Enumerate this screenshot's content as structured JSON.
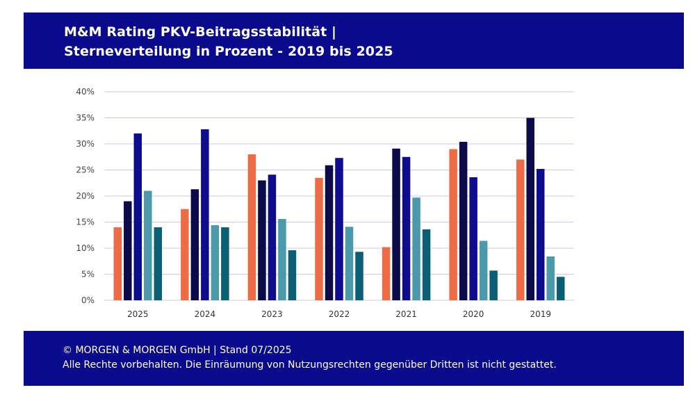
{
  "header": {
    "title_line1": "M&M Rating PKV-Beitragsstabilität |",
    "title_line2": "Sterneverteilung in Prozent - 2019 bis 2025"
  },
  "footer": {
    "line1": "© MORGEN & MORGEN GmbH | Stand 07/2025",
    "line2": "Alle Rechte vorbehalten. Die Einräumung von Nutzungsrechten gegenüber Dritten ist nicht gestattet."
  },
  "colors": {
    "header_bg": "#0a0a8c",
    "grid": "#c9c9ee",
    "series": [
      "#ee6c45",
      "#0b0b4a",
      "#0d0d8e",
      "#4b9aac",
      "#0a5f74"
    ]
  },
  "chart_data": {
    "type": "bar",
    "title": "",
    "xlabel": "",
    "ylabel": "",
    "ylim": [
      0,
      40
    ],
    "yticks": [
      "0%",
      "5%",
      "10%",
      "15%",
      "20%",
      "25%",
      "30%",
      "35%",
      "40%"
    ],
    "grid": true,
    "legend": "none",
    "categories": [
      "2025",
      "2024",
      "2023",
      "2022",
      "2021",
      "2020",
      "2019"
    ],
    "series": [
      {
        "values": [
          14.0,
          17.5,
          28.0,
          23.5,
          10.2,
          29.0,
          27.0
        ]
      },
      {
        "values": [
          19.0,
          21.3,
          23.0,
          25.9,
          29.1,
          30.4,
          35.0
        ]
      },
      {
        "values": [
          32.0,
          32.8,
          24.1,
          27.3,
          27.5,
          23.6,
          25.2
        ]
      },
      {
        "values": [
          21.0,
          14.4,
          15.6,
          14.1,
          19.7,
          11.4,
          8.4
        ]
      },
      {
        "values": [
          14.0,
          14.0,
          9.6,
          9.3,
          13.6,
          5.7,
          4.5
        ]
      }
    ]
  }
}
